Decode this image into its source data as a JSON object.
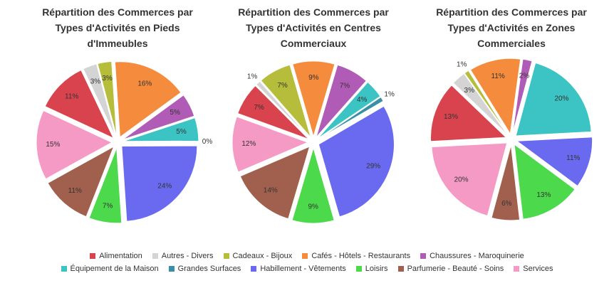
{
  "chart_data": [
    {
      "type": "pie",
      "title": "Répartition des Commerces par Types d'Activités en Pieds d'Immeubles",
      "categories": [
        "Alimentation",
        "Autres - Divers",
        "Cadeaux - Bijoux",
        "Cafés - Hôtels - Restaurants",
        "Chaussures - Maroquinerie",
        "Équipement de la Maison",
        "Grandes Surfaces",
        "Habillement - Vêtements",
        "Loisirs",
        "Parfumerie - Beauté - Soins",
        "Services"
      ],
      "values": [
        11,
        3,
        3,
        16,
        5,
        5,
        0,
        24,
        7,
        11,
        15
      ],
      "value_labels": [
        "11%",
        "3%",
        "3%",
        "16%",
        "5%",
        "5%",
        "0%",
        "24%",
        "7%",
        "11%",
        "15%"
      ],
      "colors": [
        "#d9434e",
        "#d4d4d4",
        "#b5bd3a",
        "#f58b3c",
        "#b05bb5",
        "#3cc4c4",
        "#3a8fa8",
        "#6a6af0",
        "#4cd94c",
        "#a0604d",
        "#f59ac4"
      ]
    },
    {
      "type": "pie",
      "title": "Répartition des Commerces par Types d'Activités en Centres Commerciaux",
      "categories": [
        "Alimentation",
        "Autres - Divers",
        "Cadeaux - Bijoux",
        "Cafés - Hôtels - Restaurants",
        "Chaussures - Maroquinerie",
        "Équipement de la Maison",
        "Grandes Surfaces",
        "Habillement - Vêtements",
        "Loisirs",
        "Parfumerie - Beauté - Soins",
        "Services"
      ],
      "values": [
        7,
        1,
        7,
        9,
        7,
        4,
        1,
        29,
        9,
        14,
        12
      ],
      "value_labels": [
        "7%",
        "1%",
        "7%",
        "9%",
        "7%",
        "4%",
        "1%",
        "29%",
        "9%",
        "14%",
        "12%"
      ],
      "colors": [
        "#d9434e",
        "#d4d4d4",
        "#b5bd3a",
        "#f58b3c",
        "#b05bb5",
        "#3cc4c4",
        "#3a8fa8",
        "#6a6af0",
        "#4cd94c",
        "#a0604d",
        "#f59ac4"
      ]
    },
    {
      "type": "pie",
      "title": "Répartition des Commerces par Types d'Activités en Zones Commerciales",
      "categories": [
        "Alimentation",
        "Autres - Divers",
        "Cadeaux - Bijoux",
        "Cafés - Hôtels - Restaurants",
        "Chaussures - Maroquinerie",
        "Équipement de la Maison",
        "Grandes Surfaces",
        "Habillement - Vêtements",
        "Loisirs",
        "Parfumerie - Beauté - Soins",
        "Services"
      ],
      "values": [
        13,
        3,
        1,
        11,
        2,
        20,
        null,
        11,
        13,
        6,
        20
      ],
      "value_labels": [
        "13%",
        "3%",
        "1%",
        "11%",
        "2%",
        "20%",
        null,
        "11%",
        "13%",
        "6%",
        "20%"
      ],
      "colors": [
        "#d9434e",
        "#d4d4d4",
        "#b5bd3a",
        "#f58b3c",
        "#b05bb5",
        "#3cc4c4",
        "#3a8fa8",
        "#6a6af0",
        "#4cd94c",
        "#a0604d",
        "#f59ac4"
      ]
    }
  ]
}
